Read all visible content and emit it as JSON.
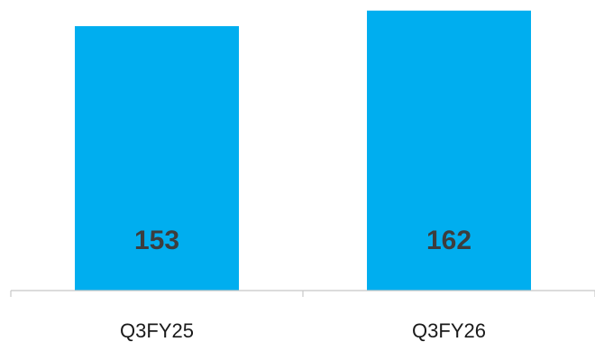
{
  "chart_data": {
    "type": "bar",
    "categories": [
      "Q3FY25",
      "Q3FY26"
    ],
    "values": [
      153,
      162
    ],
    "data_labels": [
      "153",
      "162"
    ],
    "title": "",
    "xlabel": "",
    "ylabel": "",
    "ylim": [
      0,
      165
    ],
    "grid": false,
    "legend": "none",
    "bar_color": "#00AEEF"
  }
}
